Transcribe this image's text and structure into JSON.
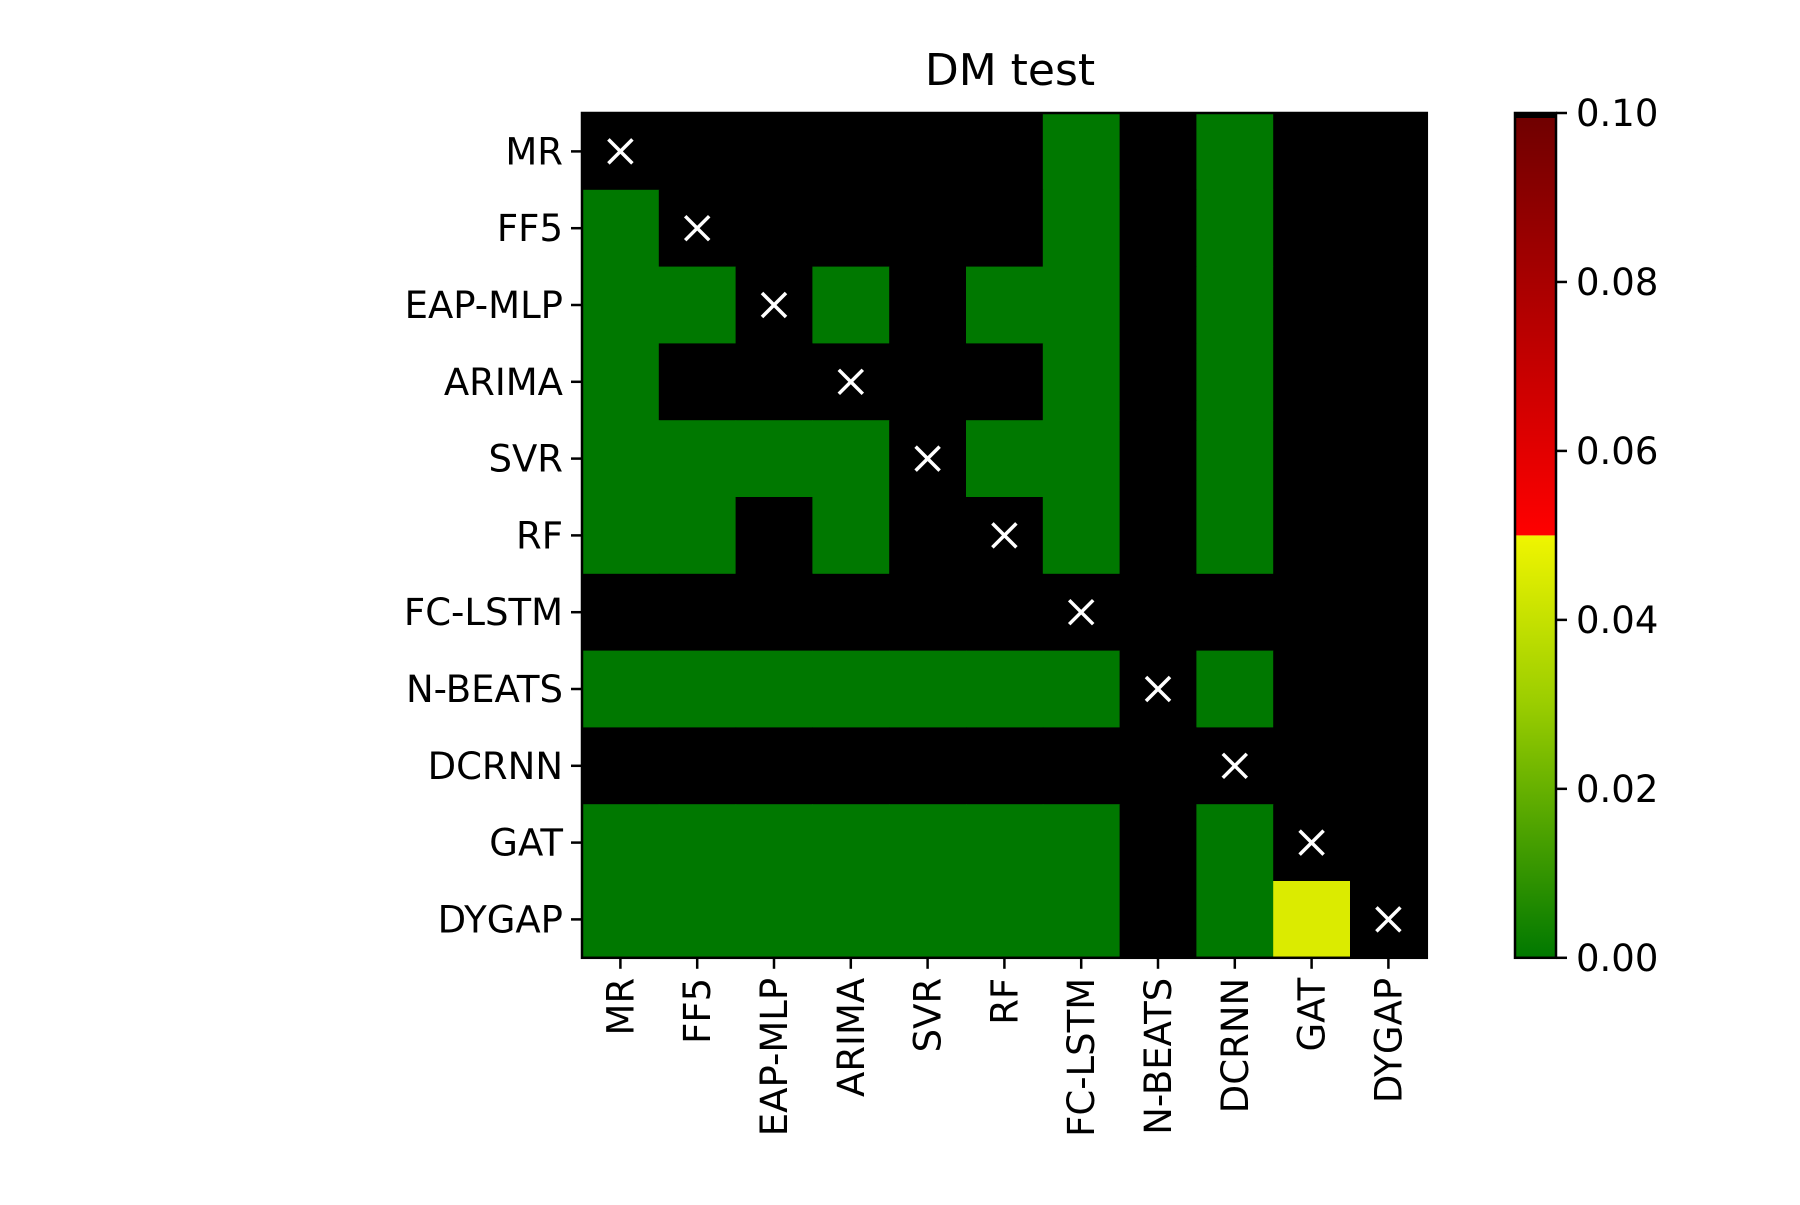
{
  "chart_data": {
    "type": "heatmap",
    "title": "DM test",
    "xlabel": "",
    "ylabel": "",
    "row_labels": [
      "MR",
      "FF5",
      "EAP-MLP",
      "ARIMA",
      "SVR",
      "RF",
      "FC-LSTM",
      "N-BEATS",
      "DCRNN",
      "GAT",
      "DYGAP"
    ],
    "col_labels": [
      "MR",
      "FF5",
      "EAP-MLP",
      "ARIMA",
      "SVR",
      "RF",
      "FC-LSTM",
      "N-BEATS",
      "DCRNN",
      "GAT",
      "DYGAP"
    ],
    "values": [
      [
        null,
        1,
        1,
        1,
        1,
        1,
        0,
        1,
        0,
        1,
        1
      ],
      [
        0,
        null,
        1,
        1,
        1,
        1,
        0,
        1,
        0,
        1,
        1
      ],
      [
        0,
        0,
        null,
        0,
        1,
        0,
        0,
        1,
        0,
        1,
        1
      ],
      [
        0,
        1,
        1,
        null,
        1,
        1,
        0,
        1,
        0,
        1,
        1
      ],
      [
        0,
        0,
        0,
        0,
        null,
        0,
        0,
        1,
        0,
        1,
        1
      ],
      [
        0,
        0,
        1,
        0,
        1,
        null,
        0,
        1,
        0,
        1,
        1
      ],
      [
        1,
        1,
        1,
        1,
        1,
        1,
        null,
        1,
        1,
        1,
        1
      ],
      [
        0,
        0,
        0,
        0,
        0,
        0,
        0,
        null,
        0,
        1,
        1
      ],
      [
        1,
        1,
        1,
        1,
        1,
        1,
        1,
        1,
        null,
        1,
        1
      ],
      [
        0,
        0,
        0,
        0,
        0,
        0,
        0,
        1,
        0,
        null,
        1
      ],
      [
        0,
        0,
        0,
        0,
        0,
        0,
        0,
        1,
        0,
        0.045,
        null
      ]
    ],
    "diagonal_marker": "×",
    "colorbar": {
      "min": 0.0,
      "max": 0.1,
      "ticks": [
        "0.00",
        "0.02",
        "0.04",
        "0.06",
        "0.08",
        "0.10"
      ],
      "tick_values": [
        0.0,
        0.02,
        0.04,
        0.06,
        0.08,
        0.1
      ],
      "colors": {
        "low_green": "#007800",
        "mid_yellow_green": "#9acd00",
        "yellow": "#f0f500",
        "red": "#ff0000",
        "dark_red": "#700000",
        "black": "#000000"
      }
    },
    "grid": false
  }
}
